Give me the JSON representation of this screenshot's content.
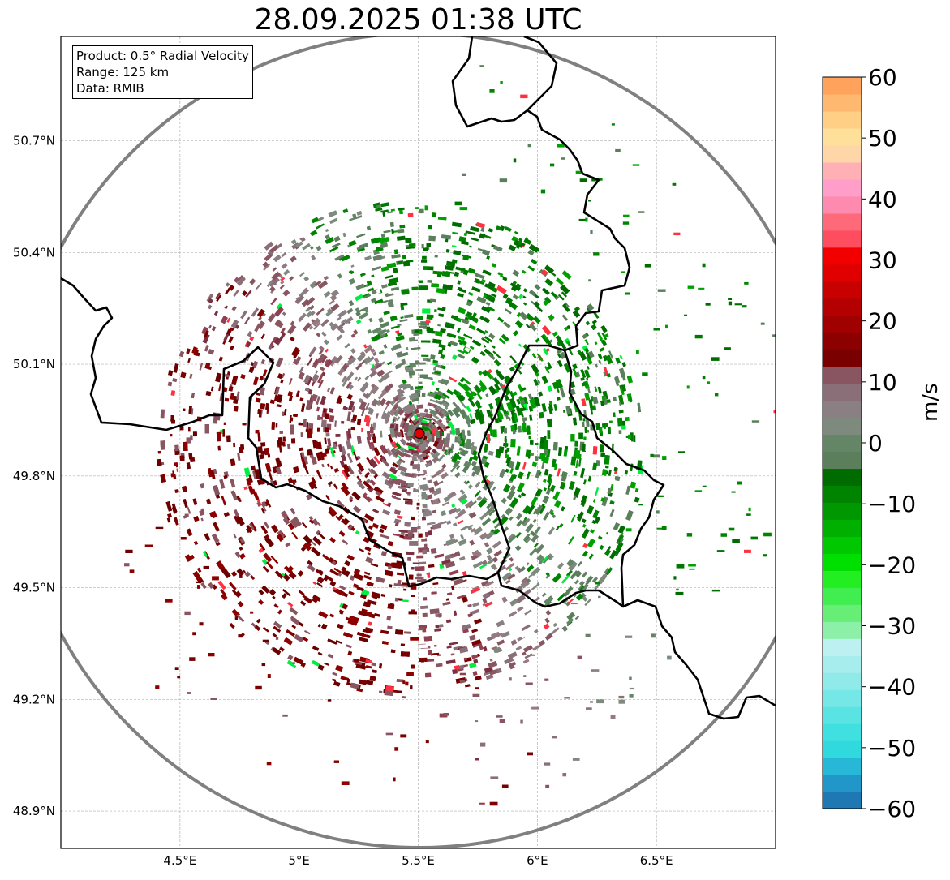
{
  "title": "28.09.2025 01:38 UTC",
  "info": {
    "product": "Product: 0.5° Radial Velocity",
    "range": "Range: 125 km",
    "data": "Data: RMIB"
  },
  "map": {
    "lon_range": [
      4.0,
      7.0
    ],
    "lat_range": [
      48.8,
      50.98
    ],
    "lon_ticks": [
      {
        "value": 4.5,
        "label": "4.5°E"
      },
      {
        "value": 5.0,
        "label": "5°E"
      },
      {
        "value": 5.5,
        "label": "5.5°E"
      },
      {
        "value": 6.0,
        "label": "6°E"
      },
      {
        "value": 6.5,
        "label": "6.5°E"
      }
    ],
    "lat_ticks": [
      {
        "value": 48.9,
        "label": "48.9°N"
      },
      {
        "value": 49.2,
        "label": "49.2°N"
      },
      {
        "value": 49.5,
        "label": "49.5°N"
      },
      {
        "value": 49.8,
        "label": "49.8°N"
      },
      {
        "value": 50.1,
        "label": "50.1°N"
      },
      {
        "value": 50.4,
        "label": "50.4°N"
      },
      {
        "value": 50.7,
        "label": "50.7°N"
      }
    ],
    "radar_site": {
      "lon": 5.505,
      "lat": 49.914,
      "color": "#e00000"
    },
    "range_km": 125
  },
  "colorbar": {
    "label": "m/s",
    "min": -60,
    "max": 60,
    "ticks": [
      {
        "value": 60,
        "label": "60"
      },
      {
        "value": 50,
        "label": "50"
      },
      {
        "value": 40,
        "label": "40"
      },
      {
        "value": 30,
        "label": "30"
      },
      {
        "value": 20,
        "label": "20"
      },
      {
        "value": 10,
        "label": "10"
      },
      {
        "value": 0,
        "label": "0"
      },
      {
        "value": -10,
        "label": "−10"
      },
      {
        "value": -20,
        "label": "−20"
      },
      {
        "value": -30,
        "label": "−30"
      },
      {
        "value": -40,
        "label": "−40"
      },
      {
        "value": -50,
        "label": "−50"
      },
      {
        "value": -60,
        "label": "−60"
      }
    ],
    "colors": [
      "#1f77b4",
      "#2196c8",
      "#27b8d8",
      "#2fd9dd",
      "#40dfe0",
      "#5ae3e3",
      "#76e7e7",
      "#90eaea",
      "#a8eded",
      "#bdf0f0",
      "#8df0a8",
      "#66ee77",
      "#40ee50",
      "#22ee22",
      "#00e000",
      "#00c800",
      "#00b000",
      "#009800",
      "#008400",
      "#006c00",
      "#5b7f5b",
      "#648667",
      "#7f8a7f",
      "#8a7f82",
      "#8a6f78",
      "#885560",
      "#7a0000",
      "#8c0000",
      "#a00000",
      "#b40000",
      "#c80000",
      "#e00000",
      "#f20000",
      "#ff4d60",
      "#ff6a7a",
      "#ff8ab0",
      "#ff9ec9",
      "#ffb0b5",
      "#ffd6a8",
      "#ffe09a",
      "#ffcf85",
      "#ffb870",
      "#ffa25c"
    ]
  }
}
